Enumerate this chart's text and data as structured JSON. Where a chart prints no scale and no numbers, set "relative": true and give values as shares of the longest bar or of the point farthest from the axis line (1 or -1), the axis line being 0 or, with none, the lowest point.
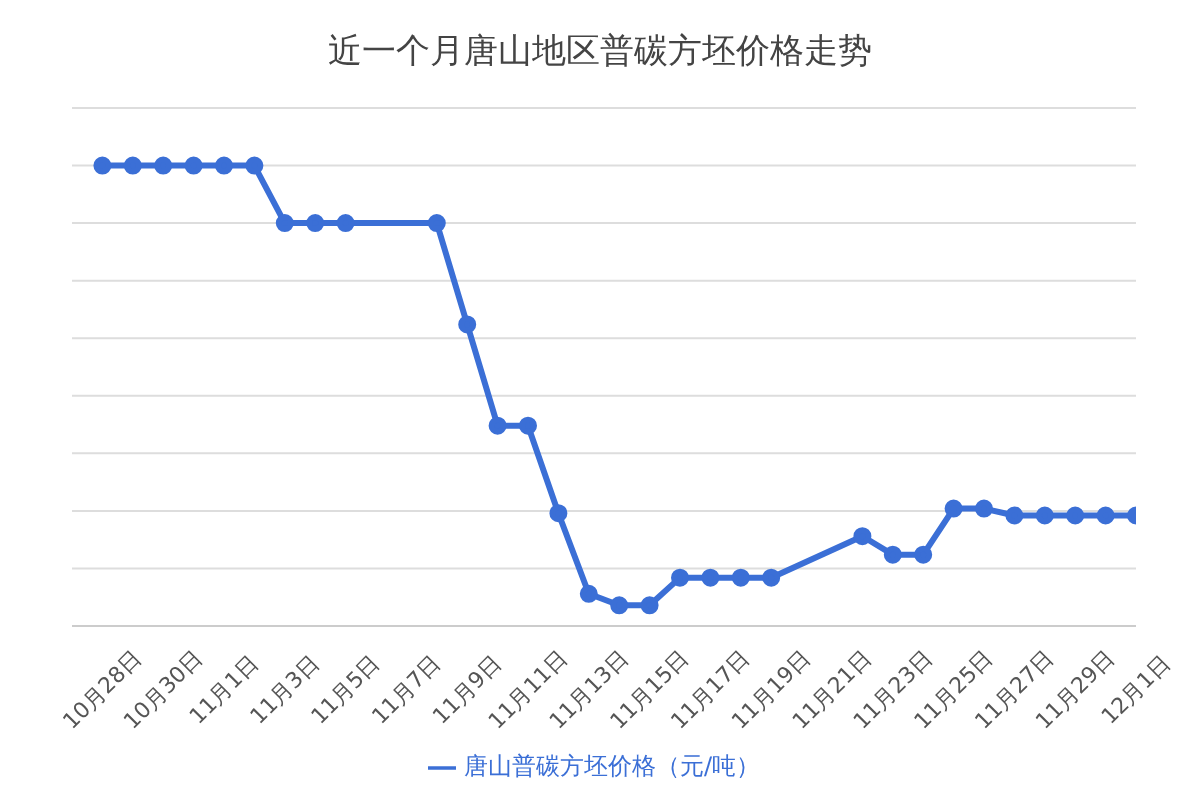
{
  "chart_data": {
    "type": "line",
    "title": "近一个月唐山地区普碳方坯价格走势",
    "relative": true,
    "grid": "y",
    "legend": "bottom",
    "marker": "circle",
    "line_style": "solid",
    "xlim": [
      "--10-27",
      "--12-01"
    ],
    "xticks": [
      {
        "value": "--10-28",
        "label": "10月28日"
      },
      {
        "value": "--10-30",
        "label": "10月30日"
      },
      {
        "value": "--11-01",
        "label": "11月1日"
      },
      {
        "value": "--11-03",
        "label": "11月3日"
      },
      {
        "value": "--11-05",
        "label": "11月5日"
      },
      {
        "value": "--11-07",
        "label": "11月7日"
      },
      {
        "value": "--11-09",
        "label": "11月9日"
      },
      {
        "value": "--11-11",
        "label": "11月11日"
      },
      {
        "value": "--11-13",
        "label": "11月13日"
      },
      {
        "value": "--11-15",
        "label": "11月15日"
      },
      {
        "value": "--11-17",
        "label": "11月17日"
      },
      {
        "value": "--11-19",
        "label": "11月19日"
      },
      {
        "value": "--11-21",
        "label": "11月21日"
      },
      {
        "value": "--11-23",
        "label": "11月23日"
      },
      {
        "value": "--11-25",
        "label": "11月25日"
      },
      {
        "value": "--11-27",
        "label": "11月27日"
      },
      {
        "value": "--11-29",
        "label": "11月29日"
      },
      {
        "value": "--12-01",
        "label": "12月1日"
      }
    ],
    "x": [
      "--10-28",
      "--10-29",
      "--10-30",
      "--10-31",
      "--11-01",
      "--11-02",
      "--11-03",
      "--11-04",
      "--11-05",
      "--11-08",
      "--11-09",
      "--11-10",
      "--11-11",
      "--11-12",
      "--11-13",
      "--11-14",
      "--11-15",
      "--11-16",
      "--11-17",
      "--11-18",
      "--11-19",
      "--11-22",
      "--11-23",
      "--11-24",
      "--11-25",
      "--11-26",
      "--11-27",
      "--11-28",
      "--11-29",
      "--11-30",
      "--12-01"
    ],
    "series": [
      {
        "name": "唐山普碳方坯价格（元/吨）",
        "color": "#3b6fd6",
        "values": [
          1,
          1,
          1,
          1,
          1,
          1,
          0.875,
          0.875,
          0.875,
          0.875,
          0.655,
          0.435,
          0.435,
          0.245,
          0.07,
          0.045,
          0.045,
          0.105,
          0.105,
          0.105,
          0.105,
          0.195,
          0.155,
          0.155,
          0.255,
          0.255,
          0.24,
          0.24,
          0.24,
          0.24,
          0.24
        ]
      }
    ]
  }
}
